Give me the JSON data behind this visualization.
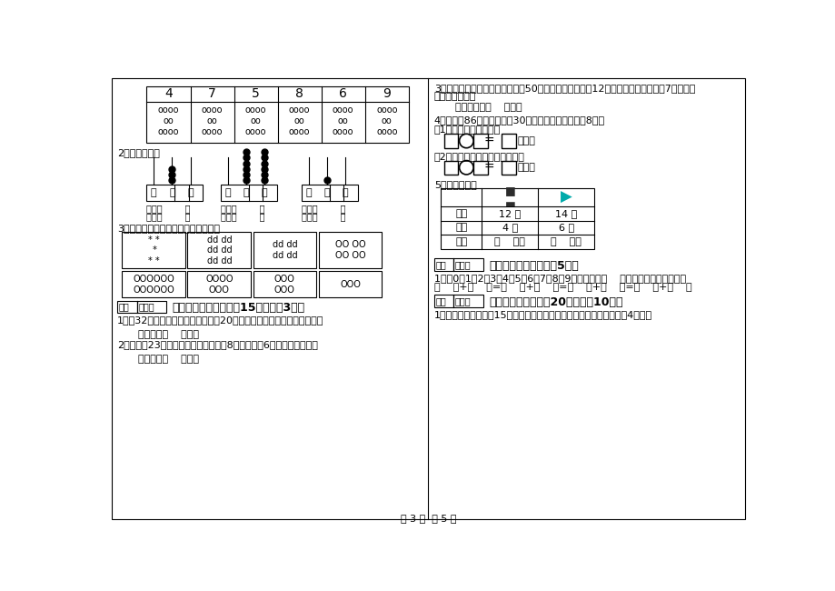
{
  "bg_color": "#ffffff",
  "footer_text": "第 3 页  共 5 页",
  "left_col": {
    "table_headers": [
      "4",
      "7",
      "5",
      "8",
      "6",
      "9"
    ],
    "s2_title": "2、看图写数。",
    "s3_title": "3、看图解题，对应的图与数连一连。",
    "score_label": "得分",
    "reviewer_label": "评卷人",
    "s8_title": "八、解决问题（本题入15分，每頃3分）",
    "q1": "1、有32位家长参加家长会，现在有20把椅子，每人坐一把，还差几把？",
    "q1_ans": "答：还差（    ）把。",
    "q2": "2、小明用23元錢买了两种商品，皮玃8元，文具盒6元，还剩多少元？",
    "q2_ans": "答：还剩（    ）元。"
  },
  "right_col": {
    "q3_line1": "3、幼儿园买了梨和苹果，其中有50个苹果，分给小朋友12个苹果后，梨比苹果还7个；请问",
    "q3_line2": "买梨子多少个？",
    "q3_ans": "答：买梨子（    ）个。",
    "q4": "4、一本书86页，小明看䌀30页，小红比小明多看䌀8页。",
    "q4_1": "（1）小红看了多少页？",
    "q4_2": "（2）小明还剩下多少页没有看？",
    "page_unit": "（页）",
    "q5_title": "5、解决问题。",
    "table_row0": [
      "",
      "",
      ""
    ],
    "table_row1": [
      "原有",
      "12 瓶",
      "14 副"
    ],
    "table_row2": [
      "卖出",
      "4 瓶",
      "6 副"
    ],
    "table_row3": [
      "还剩",
      "（    ）瓶",
      "（    ）副"
    ],
    "score_label": "得分",
    "reviewer_label": "评卷人",
    "s9_title": "九、个性空间（本题入5分）",
    "q6_line1": "1、把0、1、2、3、4、5、6、7、8、9十个数填在（    ）里，每个数只用一次。",
    "q6_line2": "（    ）+（    ）=（    ）+（    ）=（    ）+（    ）=（    ）+（    ）",
    "s10_title": "十、附加题（本题入20分，每顀10分）",
    "q7": "1、（探究题）小松用15元买以下物品。如果把錢全部花完，他可以买4物品？"
  }
}
